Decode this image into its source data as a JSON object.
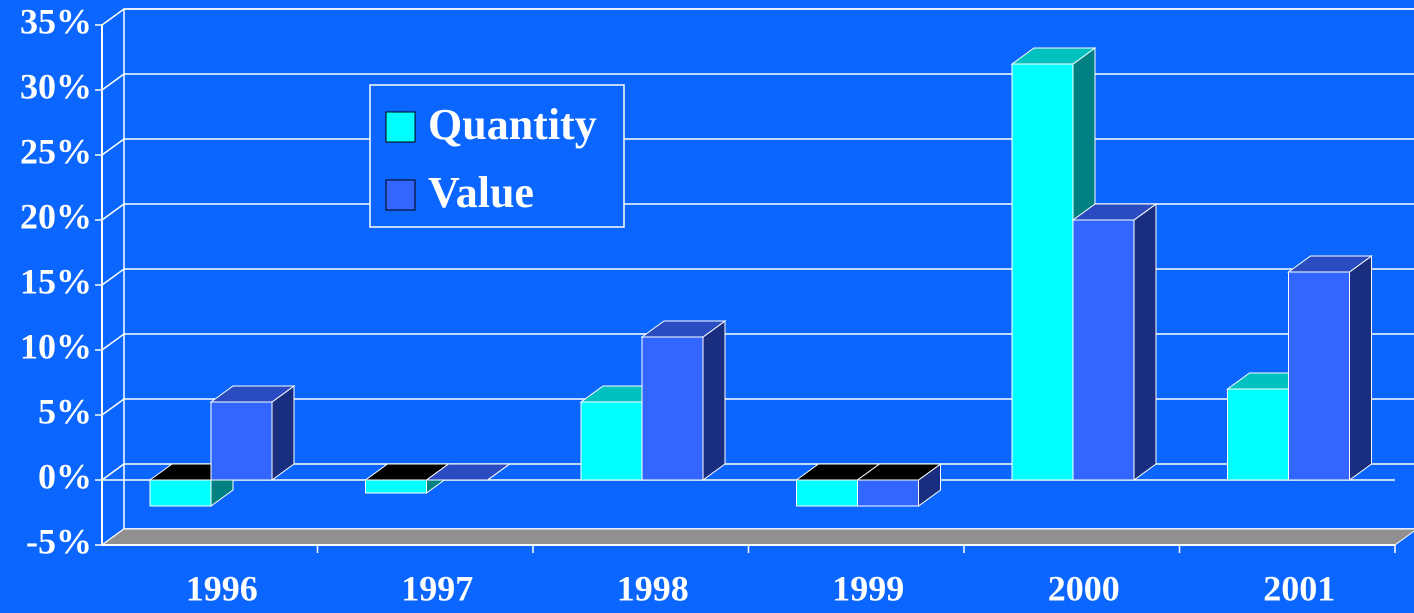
{
  "chart_data": {
    "type": "bar3d",
    "categories": [
      "1996",
      "1997",
      "1998",
      "1999",
      "2000",
      "2001"
    ],
    "series": [
      {
        "name": "Quantity",
        "color": "#00ffff",
        "values": [
          -2,
          -1,
          6,
          -2,
          32,
          7
        ]
      },
      {
        "name": "Value",
        "color": "#3366ff",
        "values": [
          6,
          0,
          11,
          -2,
          20,
          16
        ]
      }
    ],
    "ylim": [
      -5,
      35
    ],
    "yticks": [
      {
        "value": -5,
        "label": "-5%"
      },
      {
        "value": 0,
        "label": "0%"
      },
      {
        "value": 5,
        "label": "5%"
      },
      {
        "value": 10,
        "label": "10%"
      },
      {
        "value": 15,
        "label": "15%"
      },
      {
        "value": 20,
        "label": "20%"
      },
      {
        "value": 25,
        "label": "25%"
      },
      {
        "value": 30,
        "label": "30%"
      },
      {
        "value": 35,
        "label": "35%"
      }
    ],
    "grid": true,
    "legend": "upper left"
  }
}
